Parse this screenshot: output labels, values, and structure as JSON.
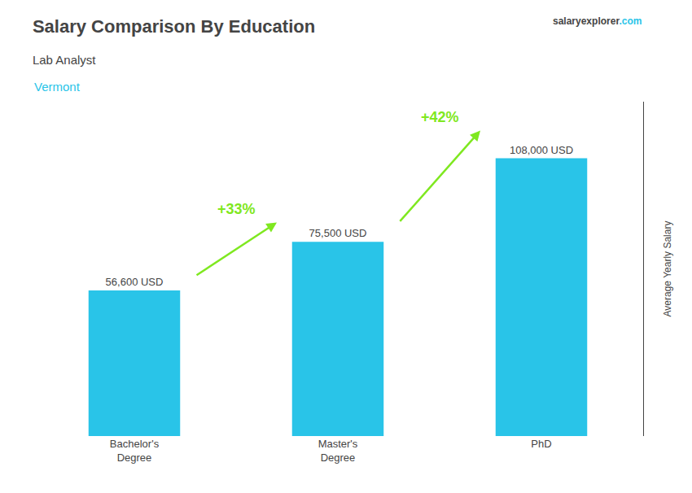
{
  "chart_data": {
    "type": "bar",
    "title": "Salary Comparison By Education",
    "subtitle": "Lab Analyst",
    "categories": [
      "Bachelor's\nDegree",
      "Master's\nDegree",
      "PhD"
    ],
    "values": [
      56600,
      75500,
      108000
    ],
    "value_labels": [
      "56,600 USD",
      "75,500 USD",
      "108,000 USD"
    ],
    "data_labels": true,
    "color": "#29C4E8",
    "ylabel": "Average Yearly Salary",
    "ylim": [
      0,
      130000
    ],
    "grid": false,
    "tick_labels": "x",
    "annotations": [
      {
        "text": "Vermont",
        "color": "#29C4E8"
      },
      {
        "text": "salaryexplorer"
      },
      {
        "text": ".com",
        "color": "#29C4E8"
      },
      {
        "text": "+33%",
        "from": 0,
        "to": 1,
        "color": "#7FE820"
      },
      {
        "text": "+42%",
        "from": 1,
        "to": 2,
        "color": "#7FE820"
      }
    ]
  }
}
